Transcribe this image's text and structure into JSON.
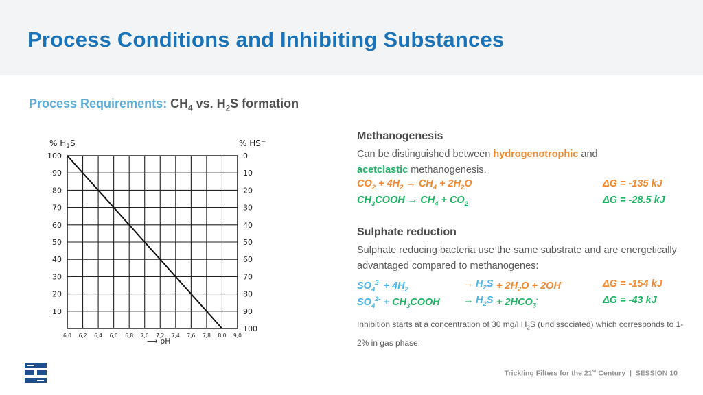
{
  "slide_title": "Process Conditions and Inhibiting Substances",
  "subtitle": {
    "label": "Process Requirements:",
    "topic": "CH4 vs. H2S formation"
  },
  "chart_data": {
    "type": "line",
    "title": "",
    "left_axis_label": "% H2S",
    "right_axis_label": "% HS-",
    "xlabel": "pH",
    "left_ticks": [
      "100",
      "90",
      "80",
      "70",
      "60",
      "50",
      "40",
      "30",
      "20",
      "10"
    ],
    "right_ticks": [
      "0",
      "10",
      "20",
      "30",
      "40",
      "50",
      "60",
      "70",
      "80",
      "90",
      "100"
    ],
    "x_ticks": [
      "6,0",
      "6,2",
      "6,4",
      "6,6",
      "6,8",
      "7,0",
      "7,2",
      "7,4",
      "7,6",
      "7,8",
      "8,0",
      "9,0"
    ],
    "xlim": [
      6.0,
      9.0
    ],
    "ylim": [
      0,
      100
    ],
    "grid": true,
    "series": [
      {
        "x": [
          6.0,
          8.0
        ],
        "y": [
          100,
          0
        ]
      }
    ]
  },
  "methanogenesis": {
    "heading": "Methanogenesis",
    "text_pre": "Can be distinguished between ",
    "hydro": "hydrogenotrophic",
    "text_and": " and",
    "aceto": "acetclastic",
    "text_post": " methanogenesis.",
    "eq1_dg": "ΔG = -135 kJ",
    "eq2_dg": "ΔG = -28.5 kJ"
  },
  "sulphate": {
    "heading": "Sulphate reduction",
    "text": "Sulphate reducing bacteria use the same substrate and are energetically advantaged compared to methanogenes:",
    "eq1_dg": "ΔG = -154 kJ",
    "eq2_dg": "ΔG = -43 kJ",
    "note_pre": "Inhibition starts at a concentration of 30 mg/l H",
    "note_post": "S (undissociated) which corresponds to 1-2% in gas phase."
  },
  "footer": {
    "text": "Trickling Filters for the 21st Century  |  SESSION 10"
  },
  "colors": {
    "title": "#1a73b8",
    "orange": "#f0892f",
    "green": "#1fb464",
    "cyan": "#4bb4e6"
  }
}
